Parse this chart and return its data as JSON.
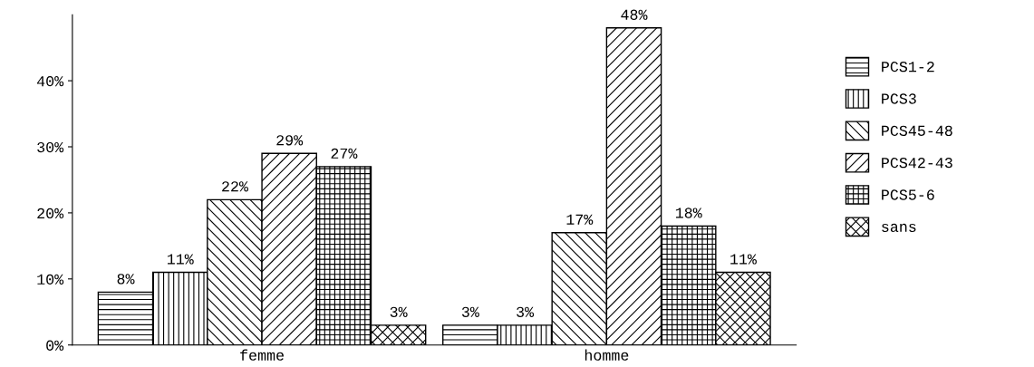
{
  "chart_data": {
    "type": "bar",
    "categories": [
      "femme",
      "homme"
    ],
    "series": [
      {
        "name": "PCS1-2",
        "color": "#000000",
        "values": [
          8,
          3
        ],
        "value_labels": [
          "8%",
          "3%"
        ]
      },
      {
        "name": "PCS3",
        "color": "#000000",
        "values": [
          11,
          3
        ],
        "value_labels": [
          "11%",
          "3%"
        ]
      },
      {
        "name": "PCS45-48",
        "color": "#000000",
        "values": [
          22,
          17
        ],
        "value_labels": [
          "22%",
          "17%"
        ]
      },
      {
        "name": "PCS42-43",
        "color": "#000000",
        "values": [
          29,
          48
        ],
        "value_labels": [
          "29%",
          "48%"
        ]
      },
      {
        "name": "PCS5-6",
        "color": "#000000",
        "values": [
          27,
          18
        ],
        "value_labels": [
          "27%",
          "18%"
        ]
      },
      {
        "name": "sans",
        "color": "#000000",
        "values": [
          3,
          11
        ],
        "value_labels": [
          "3%",
          "11%"
        ]
      }
    ],
    "ylim": [
      0,
      50
    ],
    "yticks": [
      {
        "value": 0,
        "label": "0%"
      },
      {
        "value": 10,
        "label": "10%"
      },
      {
        "value": 20,
        "label": "20%"
      },
      {
        "value": 30,
        "label": "30%"
      },
      {
        "value": 40,
        "label": "40%"
      }
    ],
    "legend": "right",
    "grid": false
  }
}
